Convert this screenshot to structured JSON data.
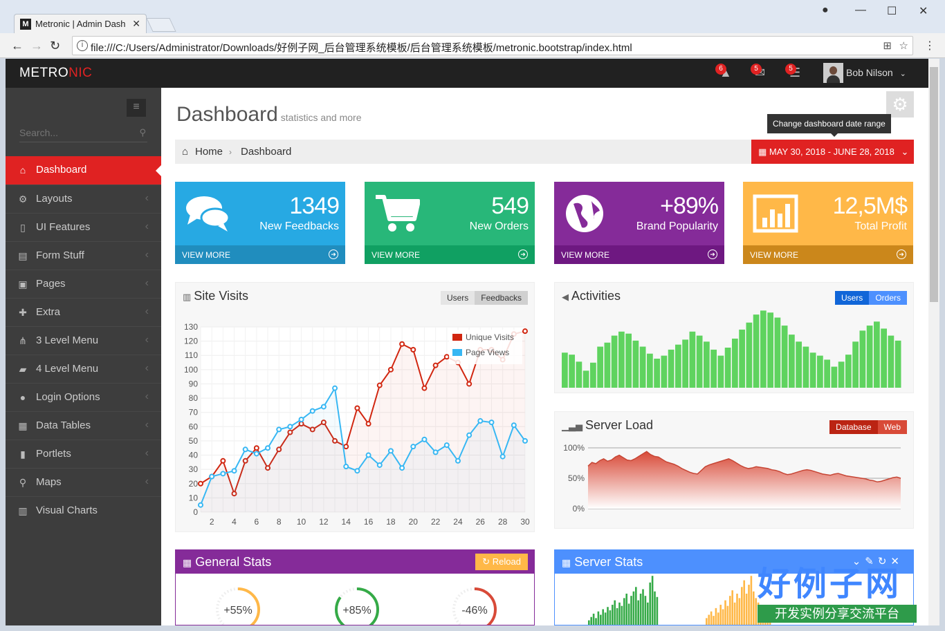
{
  "browser": {
    "tab_title": "Metronic | Admin Dash",
    "tab_favicon": "M",
    "url": "file:///C:/Users/Administrator/Downloads/好例子网_后台管理系统模板/后台管理系统模板/metronic.bootstrap/index.html"
  },
  "header": {
    "logo_main": "METRO",
    "logo_accent": "NIC",
    "notifications_count": "6",
    "inbox_count": "5",
    "tasks_count": "5",
    "user_name": "Bob Nilson"
  },
  "sidebar": {
    "search_placeholder": "Search...",
    "items": [
      {
        "label": "Dashboard",
        "icon": "home-icon",
        "glyph": "⌂"
      },
      {
        "label": "Layouts",
        "icon": "cogs-icon",
        "glyph": "⚙"
      },
      {
        "label": "UI Features",
        "icon": "bookmark-icon",
        "glyph": "▯"
      },
      {
        "label": "Form Stuff",
        "icon": "table-icon",
        "glyph": "▤"
      },
      {
        "label": "Pages",
        "icon": "briefcase-icon",
        "glyph": "▣"
      },
      {
        "label": "Extra",
        "icon": "gift-icon",
        "glyph": "✚"
      },
      {
        "label": "3 Level Menu",
        "icon": "sitemap-icon",
        "glyph": "⋔"
      },
      {
        "label": "4 Level Menu",
        "icon": "folder-open-icon",
        "glyph": "▰"
      },
      {
        "label": "Login Options",
        "icon": "user-icon",
        "glyph": "●"
      },
      {
        "label": "Data Tables",
        "icon": "th-icon",
        "glyph": "▦"
      },
      {
        "label": "Portlets",
        "icon": "file-icon",
        "glyph": "▮"
      },
      {
        "label": "Maps",
        "icon": "map-marker-icon",
        "glyph": "⚲"
      },
      {
        "label": "Visual Charts",
        "icon": "bar-chart-icon",
        "glyph": "▥"
      }
    ]
  },
  "page": {
    "title": "Dashboard",
    "subtitle": "statistics and more",
    "tooltip": "Change dashboard date range",
    "breadcrumb_home": "Home",
    "breadcrumb_current": "Dashboard",
    "date_range": "MAY 30, 2018 - JUNE 28, 2018"
  },
  "stats": [
    {
      "value": "1349",
      "label": "New Feedbacks",
      "more": "VIEW MORE",
      "color": "#27a9e3",
      "dark": "#208dbe",
      "icon": "comments-icon"
    },
    {
      "value": "549",
      "label": "New Orders",
      "more": "VIEW MORE",
      "color": "#28b779",
      "dark": "#10a062",
      "icon": "shopping-cart-icon"
    },
    {
      "value": "+89%",
      "label": "Brand Popularity",
      "more": "VIEW MORE",
      "color": "#852b99",
      "dark": "#6e1881",
      "icon": "globe-icon"
    },
    {
      "value": "12,5M$",
      "label": "Total Profit",
      "more": "VIEW MORE",
      "color": "#ffb848",
      "dark": "#cb871b",
      "icon": "bar-chart-icon"
    }
  ],
  "site_visits": {
    "title": "Site Visits",
    "btn_users": "Users",
    "btn_feedbacks": "Feedbacks"
  },
  "activities": {
    "title": "Activities",
    "btn_users": "Users",
    "btn_orders": "Orders",
    "values": [
      35,
      33,
      26,
      17,
      25,
      41,
      45,
      52,
      56,
      54,
      47,
      41,
      34,
      29,
      32,
      38,
      43,
      48,
      56,
      52,
      46,
      38,
      32,
      40,
      49,
      58,
      65,
      73,
      77,
      75,
      70,
      62,
      53,
      46,
      41,
      35,
      32,
      28,
      21,
      26,
      33,
      46,
      57,
      62,
      66,
      59,
      52,
      47
    ]
  },
  "server_load": {
    "title": "Server Load",
    "btn_database": "Database",
    "btn_web": "Web",
    "ticks": [
      "100%",
      "50%",
      "0%"
    ],
    "values": [
      70,
      76,
      74,
      79,
      82,
      78,
      80,
      85,
      88,
      84,
      80,
      79,
      82,
      86,
      90,
      94,
      89,
      86,
      85,
      81,
      77,
      75,
      73,
      70,
      66,
      63,
      60,
      58,
      57,
      63,
      69,
      72,
      74,
      76,
      78,
      80,
      82,
      79,
      75,
      71,
      68,
      66,
      67,
      69,
      68,
      67,
      66,
      64,
      63,
      61,
      58,
      56,
      57,
      59,
      61,
      63,
      64,
      63,
      61,
      59,
      57,
      56,
      55,
      57,
      58,
      56,
      54,
      53,
      52,
      51,
      50,
      49,
      47,
      46,
      44,
      45,
      47,
      49,
      51,
      52,
      50
    ]
  },
  "general_stats": {
    "title": "General Stats",
    "reload": "Reload",
    "gauges": [
      {
        "label": "+55%",
        "value": 55,
        "color": "#ffb848"
      },
      {
        "label": "+85%",
        "value": 85,
        "color": "#35aa47"
      },
      {
        "label": "-46%",
        "value": 46,
        "color": "#d84a38"
      }
    ]
  },
  "server_stats": {
    "title": "Server Stats",
    "green_bars": [
      4,
      7,
      10,
      6,
      12,
      9,
      14,
      11,
      16,
      13,
      18,
      22,
      15,
      20,
      17,
      24,
      28,
      19,
      26,
      30,
      34,
      22,
      28,
      32,
      26,
      20,
      38,
      44,
      30,
      25
    ],
    "orange_bars": [
      6,
      9,
      12,
      8,
      15,
      11,
      18,
      14,
      22,
      17,
      26,
      31,
      20,
      28,
      24,
      34,
      40,
      28,
      36,
      44,
      30,
      24,
      20,
      16,
      12,
      9,
      7,
      5
    ]
  },
  "watermark": {
    "title": "好例子网",
    "subtitle": "开发实例分享交流平台"
  },
  "chart_data": {
    "type": "line",
    "x": [
      1,
      2,
      3,
      4,
      5,
      6,
      7,
      8,
      9,
      10,
      11,
      12,
      13,
      14,
      15,
      16,
      17,
      18,
      19,
      20,
      21,
      22,
      23,
      24,
      25,
      26,
      27,
      28,
      29,
      30
    ],
    "series": [
      {
        "name": "Unique Visits",
        "color": "#d12610",
        "values": [
          20,
          25,
          36,
          13,
          36,
          45,
          31,
          44,
          56,
          62,
          58,
          63,
          50,
          46,
          73,
          62,
          89,
          100,
          118,
          114,
          87,
          103,
          109,
          105,
          90,
          114,
          114,
          107,
          125,
          127
        ]
      },
      {
        "name": "Page Views",
        "color": "#37b7f3",
        "values": [
          5,
          25,
          27,
          29,
          44,
          41,
          45,
          58,
          60,
          65,
          71,
          74,
          87,
          32,
          29,
          40,
          33,
          43,
          31,
          46,
          51,
          42,
          47,
          36,
          54,
          64,
          63,
          39,
          61,
          50
        ]
      }
    ],
    "x_ticks": [
      2,
      4,
      6,
      8,
      10,
      12,
      14,
      16,
      18,
      20,
      22,
      24,
      26,
      28,
      30
    ],
    "y_ticks": [
      0,
      10,
      20,
      30,
      40,
      50,
      60,
      70,
      80,
      90,
      100,
      110,
      120,
      130
    ],
    "ylim": [
      0,
      130
    ],
    "xlim": [
      1,
      30
    ],
    "grid": true,
    "legend": "top-right"
  }
}
